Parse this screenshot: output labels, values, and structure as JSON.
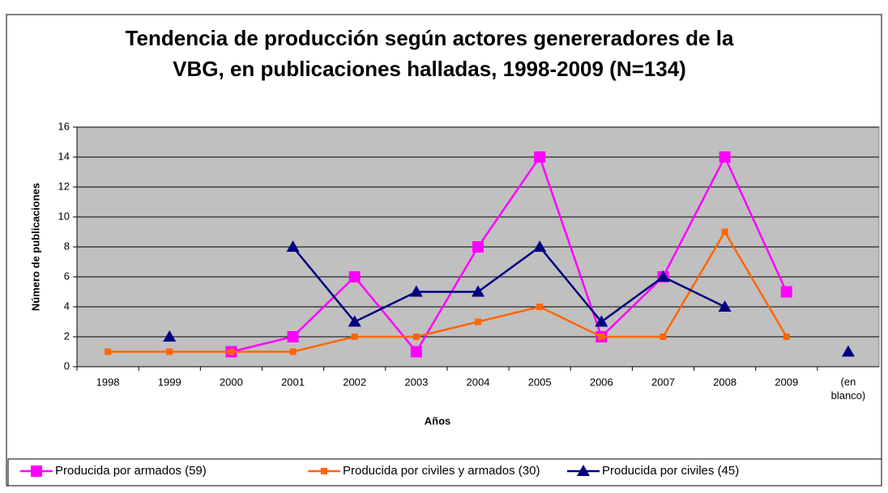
{
  "chart_data": {
    "type": "line",
    "title_lines": [
      "Tendencia de producción según actores genereradores de la",
      "VBG, en publicaciones halladas, 1998-2009 (N=134)"
    ],
    "xlabel": "Años",
    "ylabel": "Número de publicaciones",
    "categories": [
      "1998",
      "1999",
      "2000",
      "2001",
      "2002",
      "2003",
      "2004",
      "2005",
      "2006",
      "2007",
      "2008",
      "2009",
      "(en blanco)"
    ],
    "series": [
      {
        "name": "Producida por armados (59)",
        "color": "#FF00FF",
        "marker": "square",
        "values": [
          null,
          null,
          1,
          2,
          6,
          1,
          8,
          14,
          2,
          6,
          14,
          5,
          null
        ]
      },
      {
        "name": "Producida por civiles y armados (30)",
        "color": "#FF6600",
        "marker": "small-square",
        "values": [
          1,
          1,
          1,
          1,
          2,
          2,
          3,
          4,
          2,
          2,
          9,
          2,
          null
        ]
      },
      {
        "name": "Producida por civiles (45)",
        "color": "#000080",
        "marker": "triangle",
        "values": [
          null,
          2,
          null,
          8,
          3,
          5,
          5,
          8,
          3,
          6,
          4,
          null,
          1
        ]
      }
    ],
    "ylim": [
      0,
      16
    ],
    "yticks": [
      0,
      2,
      4,
      6,
      8,
      10,
      12,
      14,
      16
    ],
    "grid": true,
    "legend": "bottom",
    "plot_background": "#C0C0C0"
  }
}
